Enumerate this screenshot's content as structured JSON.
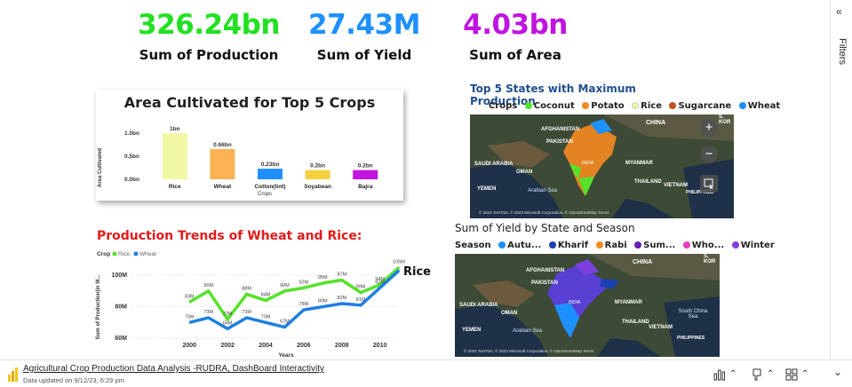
{
  "kpis": [
    {
      "value": "326.24bn",
      "label": "Sum of Production",
      "color": "#22e022"
    },
    {
      "value": "27.43M",
      "label": "Sum of Yield",
      "color": "#1e90ff"
    },
    {
      "value": "4.03bn",
      "label": "Sum of Area",
      "color": "#c014e0"
    }
  ],
  "area_chart": {
    "title": "Area Cultivated for Top 5 Crops",
    "ylabel": "Area Cultivated",
    "xlabel": "Crops",
    "ticks": [
      "1.0bn",
      "0.5bn",
      "0.0bn"
    ]
  },
  "trend_chart": {
    "title": "Production Trends of Wheat and Rice:",
    "legend_title": "Crop",
    "legend": [
      "Rice",
      "Wheat"
    ],
    "ylabel": "Sum of Production(in M...",
    "xlabel": "Years",
    "yticks": [
      "100M",
      "80M",
      "60M"
    ],
    "xticks": [
      "2000",
      "2002",
      "2004",
      "2006",
      "2008",
      "2010"
    ],
    "series_callout": "Rice"
  },
  "chart_data": [
    {
      "type": "bar",
      "title": "Area Cultivated for Top 5 Crops",
      "xlabel": "Crops",
      "ylabel": "Area Cultivated",
      "ylim": [
        0,
        1.1
      ],
      "unit": "bn",
      "categories": [
        "Rice",
        "Wheat",
        "Cotton(lint)",
        "Soyabean",
        "Bajra"
      ],
      "values": [
        1.0,
        0.66,
        0.23,
        0.2,
        0.2
      ],
      "labels": [
        "1bn",
        "0.66bn",
        "0.23bn",
        "0.2bn",
        "0.2bn"
      ],
      "colors": [
        "#f1f7a2",
        "#fbb354",
        "#1e90ff",
        "#f4d03f",
        "#c014e0"
      ]
    },
    {
      "type": "line",
      "title": "Production Trends of Wheat and Rice:",
      "xlabel": "Years",
      "ylabel": "Sum of Production(in M...",
      "ylim": [
        60,
        108
      ],
      "x": [
        1997,
        1998,
        1999,
        2000,
        2001,
        2002,
        2003,
        2004,
        2005,
        2006,
        2007,
        2008,
        2009,
        2010,
        2011
      ],
      "series": [
        {
          "name": "Rice",
          "color": "#55e22a",
          "values": [
            null,
            null,
            null,
            83,
            90,
            72,
            88,
            84,
            90,
            92,
            95,
            97,
            89,
            94,
            105
          ],
          "labels": [
            "",
            "",
            "",
            "83M",
            "90M",
            "72M",
            "88M",
            "84M",
            "90M",
            "92M",
            "95M",
            "97M",
            "89M",
            "94M",
            "105M"
          ]
        },
        {
          "name": "Wheat",
          "color": "#1e7fe0",
          "values": [
            null,
            null,
            null,
            70,
            73,
            66,
            73,
            70,
            67,
            78,
            80,
            82,
            81,
            92,
            103
          ],
          "labels": [
            "",
            "",
            "",
            "70M",
            "73M",
            "66M",
            "73M",
            "70M",
            "67M",
            "78M",
            "80M",
            "82M",
            "81M",
            "92M",
            ""
          ]
        }
      ]
    }
  ],
  "map1": {
    "title": "Top 5 States with Maximum Production",
    "legend_title": "Crops",
    "legend": [
      {
        "label": "Coconut",
        "color": "#55e22a"
      },
      {
        "label": "Potato",
        "color": "#f58a1f"
      },
      {
        "label": "Rice",
        "color": "#f1f7a2"
      },
      {
        "label": "Sugarcane",
        "color": "#c0521f"
      },
      {
        "label": "Wheat",
        "color": "#1e90ff"
      }
    ],
    "places": [
      "CHINA",
      "AFGHANISTAN",
      "PAKISTAN",
      "SAUDI ARABIA",
      "OMAN",
      "MYANMAR",
      "THAILAND",
      "VIETNAM",
      "Arabian Sea",
      "INDIA",
      "PHILIPPINES",
      "YEMEN",
      "S. KOR"
    ],
    "attribution": "© 2023 TomTom, © 2023 Microsoft Corporation, © OpenStreetMap Terms",
    "zoom_in": "+",
    "zoom_out": "−"
  },
  "map2": {
    "title": "Sum of Yield by State and Season",
    "legend_title": "Season",
    "legend": [
      {
        "label": "Autu...",
        "color": "#1e90ff"
      },
      {
        "label": "Kharif",
        "color": "#1a3fb0"
      },
      {
        "label": "Rabi",
        "color": "#f58a1f"
      },
      {
        "label": "Sum...",
        "color": "#6a1bb0"
      },
      {
        "label": "Who...",
        "color": "#e83fc2"
      },
      {
        "label": "Winter",
        "color": "#7b3fe0"
      }
    ],
    "places": [
      "CHINA",
      "AFGHANISTAN",
      "PAKISTAN",
      "SAUDI ARABIA",
      "OMAN",
      "MYANMAR",
      "THAILAND",
      "VIETNAM",
      "South China Sea",
      "Arabian Sea",
      "INDIA",
      "PHILIPPINES",
      "YEMEN",
      "S. KOR"
    ],
    "attribution": "© 2023 TomTom, © 2023 Microsoft Corporation, © OpenStreetMap Terms"
  },
  "side_panel": {
    "label": "Filters",
    "collapse": "«"
  },
  "footer": {
    "title": "Agricultural Crop Production Data Analysis -RUDRA, DashBoard Interactivity",
    "updated": "Data updated on 9/12/23, 6:29 pm",
    "chev": "⌃",
    "down": "⌄"
  }
}
